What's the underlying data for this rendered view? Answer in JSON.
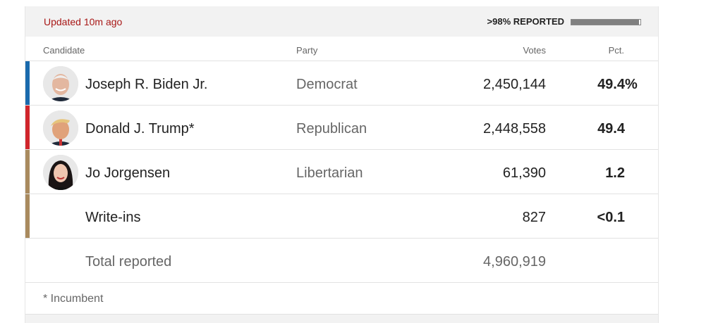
{
  "status": {
    "updated": "Updated 10m ago",
    "reported": ">98% REPORTED",
    "reported_fraction": 0.98
  },
  "columns": {
    "candidate": "Candidate",
    "party": "Party",
    "votes": "Votes",
    "pct": "Pct."
  },
  "candidates": [
    {
      "name": "Joseph R. Biden Jr.",
      "party": "Democrat",
      "votes": "2,450,144",
      "pct": "49.4",
      "pct_suffix": "%",
      "color": "#1a6aad"
    },
    {
      "name": "Donald J. Trump*",
      "party": "Republican",
      "votes": "2,448,558",
      "pct": "49.4",
      "pct_suffix": "",
      "color": "#d0252b"
    },
    {
      "name": "Jo Jorgensen",
      "party": "Libertarian",
      "votes": "61,390",
      "pct": "1.2",
      "pct_suffix": "",
      "color": "#a98a5e"
    },
    {
      "name": "Write-ins",
      "party": "",
      "votes": "827",
      "pct": "<0.1",
      "pct_suffix": "",
      "color": "#a98a5e"
    }
  ],
  "total": {
    "label": "Total reported",
    "votes": "4,960,919"
  },
  "footnote": "* Incumbent"
}
